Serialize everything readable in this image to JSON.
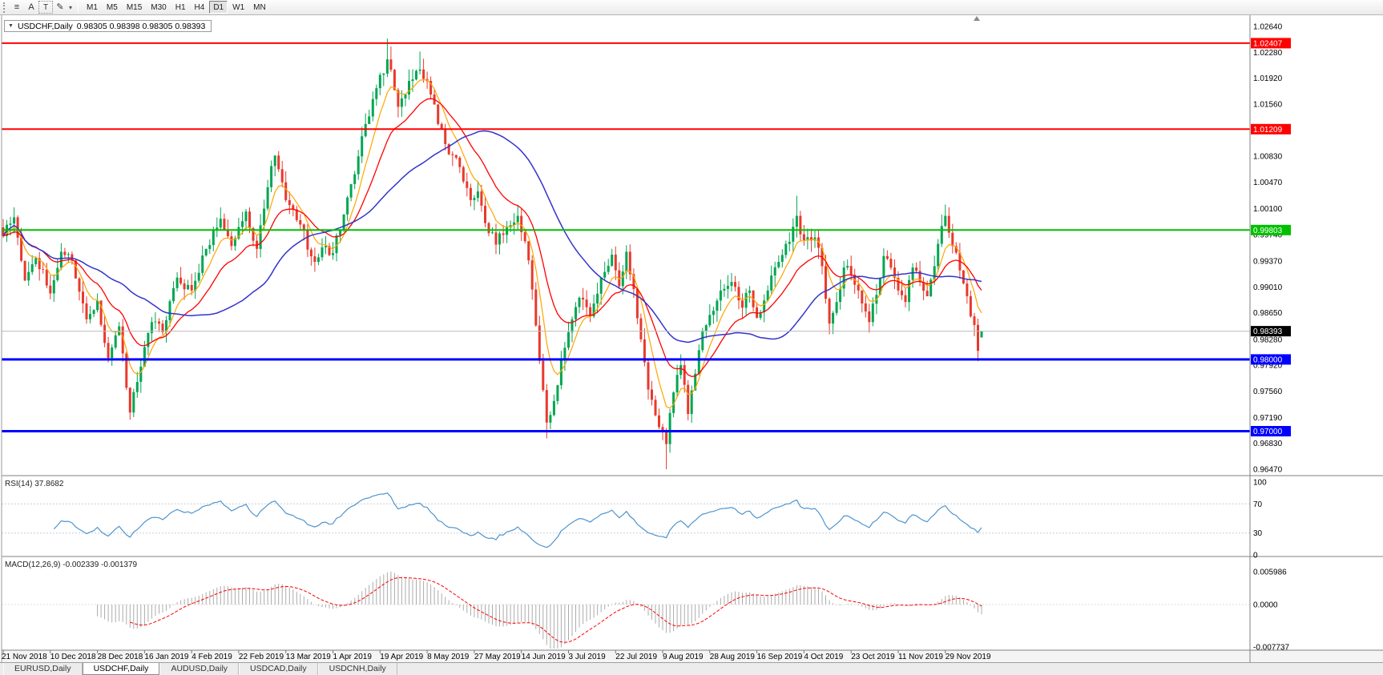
{
  "toolbar": {
    "icons": [
      {
        "name": "charts-menu-icon",
        "glyph": "≡"
      },
      {
        "name": "cursor-tool-button",
        "glyph": "A"
      },
      {
        "name": "text-tool-button",
        "glyph": "T"
      },
      {
        "name": "draw-tools-button",
        "glyph": "✎"
      },
      {
        "name": "draw-tools-dropdown-icon",
        "glyph": "▾"
      }
    ],
    "timeframes": [
      {
        "label": "M1",
        "active": false
      },
      {
        "label": "M5",
        "active": false
      },
      {
        "label": "M15",
        "active": false
      },
      {
        "label": "M30",
        "active": false
      },
      {
        "label": "H1",
        "active": false
      },
      {
        "label": "H4",
        "active": false
      },
      {
        "label": "D1",
        "active": true
      },
      {
        "label": "W1",
        "active": false
      },
      {
        "label": "MN",
        "active": false
      }
    ]
  },
  "chart": {
    "title": "USDCHF,Daily",
    "ohlc_text": "0.98305 0.98398 0.98305 0.98393",
    "collapse_icon": "▼"
  },
  "chart_data": [
    {
      "type": "candlestick",
      "symbol": "USDCHF",
      "period": "Daily",
      "last_ohlc": {
        "open": 0.98305,
        "high": 0.98398,
        "low": 0.98305,
        "close": 0.98393
      },
      "candle_count": 271,
      "bull_color": "#00A651",
      "bear_color": "#E8392D",
      "noise": 0.0009,
      "wick": 0.0016,
      "ylim": [
        0.9647,
        1.0264
      ],
      "close_anchors": [
        [
          0,
          0.9972
        ],
        [
          3,
          0.9998
        ],
        [
          6,
          0.991
        ],
        [
          9,
          0.9941
        ],
        [
          13,
          0.9892
        ],
        [
          16,
          0.995
        ],
        [
          19,
          0.9938
        ],
        [
          23,
          0.9856
        ],
        [
          26,
          0.9882
        ],
        [
          29,
          0.9802
        ],
        [
          32,
          0.9846
        ],
        [
          35,
          0.9726
        ],
        [
          38,
          0.979
        ],
        [
          41,
          0.9852
        ],
        [
          44,
          0.9838
        ],
        [
          48,
          0.9914
        ],
        [
          52,
          0.9896
        ],
        [
          56,
          0.9954
        ],
        [
          60,
          0.9996
        ],
        [
          63,
          0.9958
        ],
        [
          67,
          1.0006
        ],
        [
          70,
          0.9954
        ],
        [
          73,
          1.004
        ],
        [
          75,
          1.0084
        ],
        [
          78,
          1.0022
        ],
        [
          82,
          0.9988
        ],
        [
          86,
          0.9936
        ],
        [
          89,
          0.9958
        ],
        [
          91,
          0.9948
        ],
        [
          94,
          1.0002
        ],
        [
          97,
          1.0058
        ],
        [
          100,
          1.0128
        ],
        [
          103,
          1.0178
        ],
        [
          106,
          1.0218
        ],
        [
          109,
          1.0152
        ],
        [
          112,
          1.0188
        ],
        [
          115,
          1.0204
        ],
        [
          117,
          1.0188
        ],
        [
          120,
          1.0128
        ],
        [
          123,
          1.0086
        ],
        [
          126,
          1.0068
        ],
        [
          129,
          1.0022
        ],
        [
          131,
          1.0034
        ],
        [
          133,
          0.999
        ],
        [
          136,
          0.996
        ],
        [
          139,
          0.9984
        ],
        [
          142,
          1.0
        ],
        [
          145,
          0.9938
        ],
        [
          148,
          0.9798
        ],
        [
          150,
          0.9712
        ],
        [
          152,
          0.9742
        ],
        [
          154,
          0.98
        ],
        [
          156,
          0.9838
        ],
        [
          159,
          0.9886
        ],
        [
          162,
          0.986
        ],
        [
          165,
          0.9914
        ],
        [
          168,
          0.9946
        ],
        [
          170,
          0.9902
        ],
        [
          172,
          0.995
        ],
        [
          174,
          0.9898
        ],
        [
          176,
          0.9828
        ],
        [
          178,
          0.9758
        ],
        [
          180,
          0.9722
        ],
        [
          182,
          0.97
        ],
        [
          183,
          0.9682
        ],
        [
          185,
          0.9754
        ],
        [
          187,
          0.9792
        ],
        [
          189,
          0.9724
        ],
        [
          191,
          0.978
        ],
        [
          193,
          0.984
        ],
        [
          195,
          0.9862
        ],
        [
          198,
          0.9896
        ],
        [
          201,
          0.9908
        ],
        [
          204,
          0.9872
        ],
        [
          206,
          0.9896
        ],
        [
          208,
          0.9858
        ],
        [
          211,
          0.9896
        ],
        [
          214,
          0.9936
        ],
        [
          217,
          0.9964
        ],
        [
          219,
          1.0
        ],
        [
          221,
          0.9966
        ],
        [
          224,
          0.997
        ],
        [
          226,
          0.993
        ],
        [
          228,
          0.985
        ],
        [
          230,
          0.988
        ],
        [
          232,
          0.9928
        ],
        [
          234,
          0.9918
        ],
        [
          236,
          0.9896
        ],
        [
          239,
          0.9852
        ],
        [
          241,
          0.989
        ],
        [
          243,
          0.9944
        ],
        [
          245,
          0.9928
        ],
        [
          247,
          0.9896
        ],
        [
          249,
          0.988
        ],
        [
          251,
          0.9928
        ],
        [
          253,
          0.9908
        ],
        [
          255,
          0.9888
        ],
        [
          257,
          0.993
        ],
        [
          259,
          0.9986
        ],
        [
          260,
          1.0
        ],
        [
          262,
          0.9958
        ],
        [
          264,
          0.9924
        ],
        [
          266,
          0.9888
        ],
        [
          268,
          0.9848
        ],
        [
          269,
          0.9812
        ],
        [
          270,
          0.98393
        ]
      ],
      "wick_overrides": [
        [
          35,
          "low",
          0.9716
        ],
        [
          106,
          "high",
          1.0247
        ],
        [
          107,
          "high",
          1.0236
        ],
        [
          115,
          "high",
          1.0229
        ],
        [
          142,
          "high",
          1.0014
        ],
        [
          150,
          "low",
          0.969
        ],
        [
          183,
          "low",
          0.9647
        ],
        [
          219,
          "high",
          1.0028
        ],
        [
          260,
          "high",
          1.0013
        ],
        [
          269,
          "low",
          0.9799
        ]
      ],
      "axis_ticks": [
        "1.02640",
        "1.02280",
        "1.01920",
        "1.01560",
        "1.00830",
        "1.00470",
        "1.00100",
        "0.99740",
        "0.99370",
        "0.99010",
        "0.98650",
        "0.98280",
        "0.97920",
        "0.97560",
        "0.97190",
        "0.96830",
        "0.96470"
      ],
      "hlines": [
        {
          "value": 1.02407,
          "label": "1.02407",
          "color": "#FF0000",
          "width": 2
        },
        {
          "value": 1.01209,
          "label": "1.01209",
          "color": "#FF0000",
          "width": 2
        },
        {
          "value": 0.99803,
          "label": "0.99803",
          "color": "#00C000",
          "width": 2
        },
        {
          "value": 0.98,
          "label": "0.98000",
          "color": "#0000FF",
          "width": 3
        },
        {
          "value": 0.97,
          "label": "0.97000",
          "color": "#0000FF",
          "width": 3
        }
      ],
      "current_price": {
        "value": 0.98393,
        "label": "0.98393",
        "tag_color": "#000000",
        "line_color": "#BDBDBD"
      },
      "moving_averages": [
        {
          "name": "ma-fast-orange",
          "period": 7,
          "method": "ema",
          "color": "#FFA500",
          "width": 1.2
        },
        {
          "name": "ma-mid-red",
          "period": 18,
          "method": "ema",
          "color": "#FF0000",
          "width": 1.3
        },
        {
          "name": "ma-slow-blue",
          "period": 40,
          "method": "sma",
          "color": "#3333CC",
          "width": 1.5
        }
      ]
    },
    {
      "type": "line",
      "indicator": "RSI",
      "label": "RSI(14)",
      "current_value": "37.8682",
      "period": 14,
      "color": "#4F94CD",
      "levels": [
        70,
        30
      ],
      "axis_ticks": [
        "100",
        "70",
        "30",
        "0"
      ],
      "ylim": [
        0,
        100
      ]
    },
    {
      "type": "histogram_line",
      "indicator": "MACD",
      "label": "MACD(12,26,9)",
      "current_values": "-0.002339 -0.001379",
      "fast": 12,
      "slow": 26,
      "signal": 9,
      "histogram_color": "#ABABAB",
      "signal_color": "#FF0000",
      "axis_ticks": [
        "0.005986",
        "0.0000",
        "-0.007737"
      ],
      "ylim": [
        -0.007737,
        0.005986
      ]
    }
  ],
  "date_axis": [
    "21 Nov 2018",
    "10 Dec 2018",
    "28 Dec 2018",
    "16 Jan 2019",
    "4 Feb 2019",
    "22 Feb 2019",
    "13 Mar 2019",
    "1 Apr 2019",
    "19 Apr 2019",
    "8 May 2019",
    "27 May 2019",
    "14 Jun 2019",
    "3 Jul 2019",
    "22 Jul 2019",
    "9 Aug 2019",
    "28 Aug 2019",
    "16 Sep 2019",
    "4 Oct 2019",
    "23 Oct 2019",
    "11 Nov 2019",
    "29 Nov 2019"
  ],
  "tabs": [
    {
      "label": "EURUSD,Daily",
      "active": false
    },
    {
      "label": "USDCHF,Daily",
      "active": true
    },
    {
      "label": "AUDUSD,Daily",
      "active": false
    },
    {
      "label": "USDCAD,Daily",
      "active": false
    },
    {
      "label": "USDCNH,Daily",
      "active": false
    }
  ]
}
